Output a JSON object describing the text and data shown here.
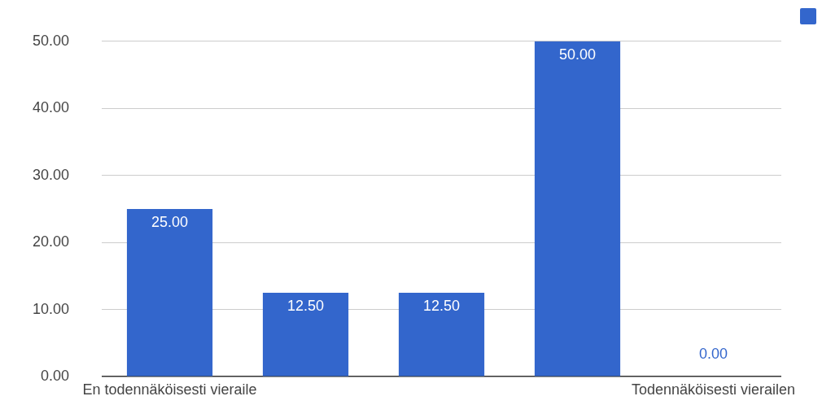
{
  "chart_data": {
    "type": "bar",
    "categories": [
      "En todennäköisesti vieraile",
      null,
      null,
      null,
      "Todennäköisesti vierailen"
    ],
    "series": [
      {
        "color": "#3366cc",
        "values": [
          25,
          12.5,
          12.5,
          50,
          0
        ],
        "value_labels": [
          "25.00",
          "12.50",
          "12.50",
          "50.00",
          "0.00"
        ]
      }
    ],
    "ylim": [
      0,
      50
    ],
    "yticks": [
      {
        "value": 0,
        "label": "0.00"
      },
      {
        "value": 10,
        "label": "10.00"
      },
      {
        "value": 20,
        "label": "20.00"
      },
      {
        "value": 30,
        "label": "30.00"
      },
      {
        "value": 40,
        "label": "40.00"
      },
      {
        "value": 50,
        "label": "50.00"
      }
    ],
    "grid": "y"
  }
}
